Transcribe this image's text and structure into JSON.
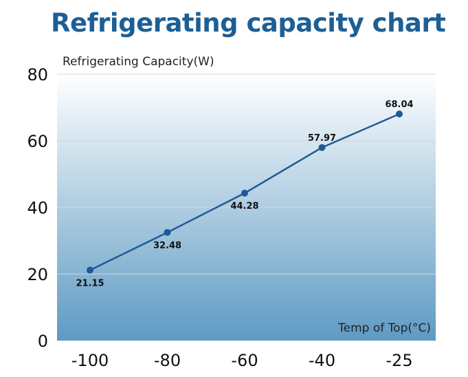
{
  "title": "Refrigerating capacity chart",
  "colors": {
    "title": "#1d5f95",
    "line": "#1d5a96",
    "bg_top": "#ffffff",
    "bg_bottom": "#5e9ac3",
    "grid": "#c9d8e4"
  },
  "chart_data": {
    "type": "line",
    "title": "Refrigerating capacity chart",
    "ylabel": "Refrigerating Capacity(W)",
    "xlabel": "Temp of Top(°C)",
    "categories": [
      "-100",
      "-80",
      "-60",
      "-40",
      "-25"
    ],
    "values": [
      21.15,
      32.48,
      44.28,
      57.97,
      68.04
    ],
    "value_labels": [
      "21.15",
      "32.48",
      "44.28",
      "57.97",
      "68.04"
    ],
    "label_position": [
      "below",
      "below",
      "below",
      "above",
      "above"
    ],
    "ylim": [
      0,
      80
    ],
    "yticks": [
      "0",
      "20",
      "40",
      "60",
      "80"
    ],
    "grid": true,
    "legend": "none"
  }
}
